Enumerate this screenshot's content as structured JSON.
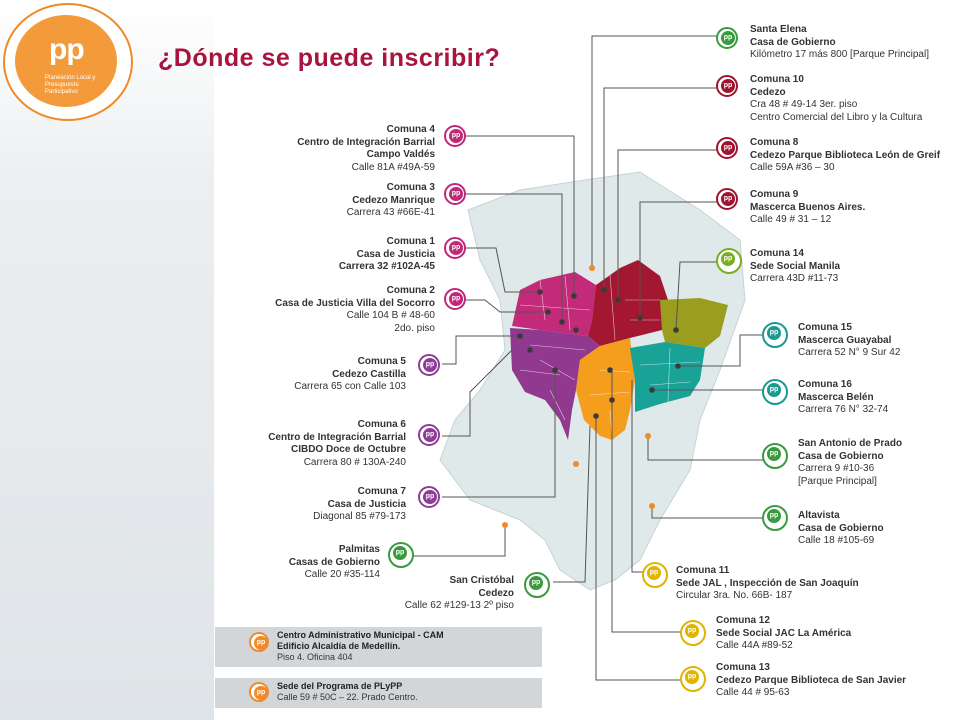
{
  "title": "¿Dónde se puede inscribir?",
  "logo": {
    "letters": "pp",
    "subtitle": "Planeación Local y Presupuesto Participativo"
  },
  "colors": {
    "title": "#a8143f",
    "accent": "#f08a28"
  },
  "labels_left": {
    "c4": {
      "l1": "Comuna  4",
      "l2": "Centro de Integración Barrial",
      "l3": "Campo Valdés",
      "l4": "Calle 81A #49A-59"
    },
    "c3": {
      "l1": "Comuna  3",
      "l2": "Cedezo Manrique",
      "l3": "Carrera 43 #66E-41"
    },
    "c1": {
      "l1": "Comuna  1",
      "l2": "Casa de Justicia",
      "l3": "Carrera 32 #102A-45"
    },
    "c2": {
      "l1": "Comuna  2",
      "l2": "Casa de Justicia Villa del Socorro",
      "l3": "Calle 104 B # 48-60",
      "l4": "2do. piso"
    },
    "c5": {
      "l1": "Comuna  5",
      "l2": "Cedezo Castilla",
      "l3": "Carrera 65 con Calle 103"
    },
    "c6": {
      "l1": "Comuna  6",
      "l2": "Centro de  Integración Barrial",
      "l3": "CIBDO  Doce de Octubre",
      "l4": "Carrera 80 # 130A-240"
    },
    "c7": {
      "l1": "Comuna  7",
      "l2": "Casa de Justicia",
      "l3": "Diagonal 85 #79-173"
    },
    "palmitas": {
      "l1": "Palmitas",
      "l2": "Casas de Gobierno",
      "l3": "Calle 20 #35-114"
    },
    "sancristobal": {
      "l1": "San Cristóbal",
      "l2": "Cedezo",
      "l3": "Calle 62 #129-13  2º piso"
    }
  },
  "labels_right": {
    "santaelena": {
      "l1": "Santa Elena",
      "l2": "Casa de Gobierno",
      "l3": "Kilómetro 17 más 800 [Parque Principal]"
    },
    "c10": {
      "l1": "Comuna 10",
      "l2": "Cedezo",
      "l3": "Cra 48 # 49-14 3er. piso",
      "l4": "Centro Comercial del Libro y la Cultura"
    },
    "c8": {
      "l1": "Comuna 8",
      "l2": "Cedezo Parque Biblioteca León de Greif",
      "l3": "Calle 59A #36 – 30"
    },
    "c9": {
      "l1": "Comuna 9",
      "l2": "Mascerca  Buenos Aires.",
      "l3": "Calle 49 # 31 – 12"
    },
    "c14": {
      "l1": "Comuna 14",
      "l2": "Sede Social Manila",
      "l3": "Carrera 43D #11-73"
    },
    "c15": {
      "l1": "Comuna 15",
      "l2": "Mascerca Guayabal",
      "l3": "Carrera 52 N° 9 Sur 42"
    },
    "c16": {
      "l1": "Comuna 16",
      "l2": "Mascerca Belén",
      "l3": "Carrera 76 N° 32-74"
    },
    "sanantonio": {
      "l1": "San Antonio de Prado",
      "l2": "Casa de Gobierno",
      "l3": "Carrera 9 #10-36",
      "l4": "[Parque Principal]"
    },
    "altavista": {
      "l1": "Altavista",
      "l2": "Casa de Gobierno",
      "l3": "Calle 18 #105-69"
    },
    "c11": {
      "l1": "Comuna 11",
      "l2": "Sede JAL , Inspección de San Joaquín",
      "l3": "Circular 3ra. No. 66B- 187"
    },
    "c12": {
      "l1": "Comuna 12",
      "l2": "Sede Social JAC La América",
      "l3": "Calle 44A #89-52"
    },
    "c13": {
      "l1": "Comuna 13",
      "l2": "Cedezo Parque Biblioteca de San Javier",
      "l3": "Calle 44 # 95-63"
    }
  },
  "boxes": {
    "cam": {
      "l1": "Centro Administrativo Municipal - CAM",
      "l2": "Edificio Alcaldía de Medellín.",
      "l3": "Piso 4. Oficina 404"
    },
    "plypp": {
      "l1": "Sede del Programa de PLyPP",
      "l2": "Calle 59 # 50C – 22. Prado Centro."
    }
  }
}
